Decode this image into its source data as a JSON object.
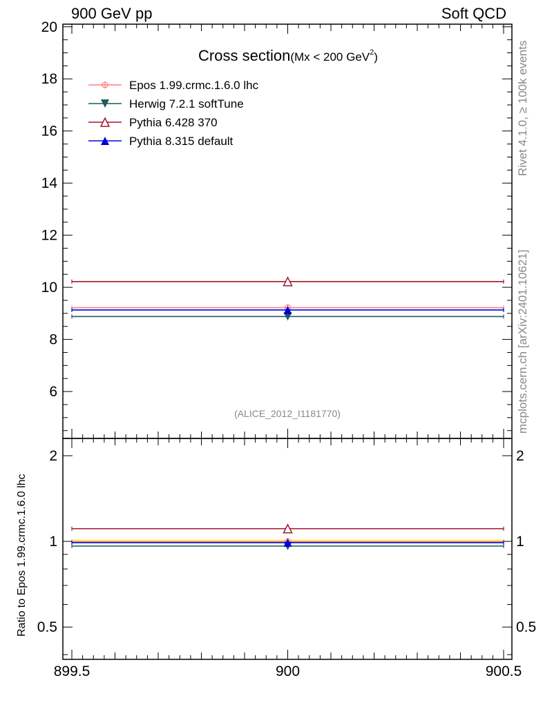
{
  "header": {
    "left": "900 GeV pp",
    "right": "Soft QCD"
  },
  "plot_title": {
    "main": "Cross section",
    "sub": "(Mx < 200 GeV",
    "sup": "2",
    "close": ")"
  },
  "side_labels": {
    "rivet": "Rivet 4.1.0, ≥ 100k events",
    "mcplots": "mcplots.cern.ch [arXiv:2401.10621]"
  },
  "analysis_label": "(ALICE_2012_I1181770)",
  "ratio_ylabel": "Ratio to Epos 1.99.crmc.1.6.0 lhc",
  "colors": {
    "epos": "#ff7f7f",
    "herwig": "#1f5a5a",
    "pythia6": "#a0182a",
    "pythia8": "#0000dd",
    "ref_band": "#ffff66"
  },
  "chart_data": [
    {
      "type": "scatter",
      "panel": "main",
      "x_range": [
        899.5,
        900.5
      ],
      "ylim": [
        4.2,
        20.1
      ],
      "y_ticks": [
        6,
        8,
        10,
        12,
        14,
        16,
        18,
        20
      ],
      "grid": false,
      "legend_position": "top-left",
      "series": [
        {
          "key": "epos",
          "name": "Epos 1.99.crmc.1.6.0 lhc",
          "marker": "open-circle-cross",
          "x": 900,
          "y": 9.22,
          "xerr": [
            899.5,
            900.5
          ]
        },
        {
          "key": "herwig",
          "name": "Herwig 7.2.1 softTune",
          "marker": "filled-triangle-down",
          "x": 900,
          "y": 8.88,
          "xerr": [
            899.5,
            900.5
          ]
        },
        {
          "key": "pythia6",
          "name": "Pythia 6.428 370",
          "marker": "open-triangle-up",
          "x": 900,
          "y": 10.22,
          "xerr": [
            899.5,
            900.5
          ]
        },
        {
          "key": "pythia8",
          "name": "Pythia 8.315 default",
          "marker": "filled-triangle-up",
          "x": 900,
          "y": 9.13,
          "xerr": [
            899.5,
            900.5
          ]
        }
      ]
    },
    {
      "type": "scatter",
      "panel": "ratio",
      "x_range": [
        899.5,
        900.5
      ],
      "x_ticks": [
        "899.5",
        "900",
        "900.5"
      ],
      "ylim": [
        0.385,
        2.3
      ],
      "y_ticks": [
        0.5,
        1,
        2
      ],
      "ylabel": "Ratio to Epos 1.99.crmc.1.6.0 lhc",
      "series": [
        {
          "key": "epos",
          "x": 900,
          "y": 1.0
        },
        {
          "key": "herwig",
          "x": 900,
          "y": 0.963
        },
        {
          "key": "pythia6",
          "x": 900,
          "y": 1.108
        },
        {
          "key": "pythia8",
          "x": 900,
          "y": 0.99
        }
      ]
    }
  ]
}
